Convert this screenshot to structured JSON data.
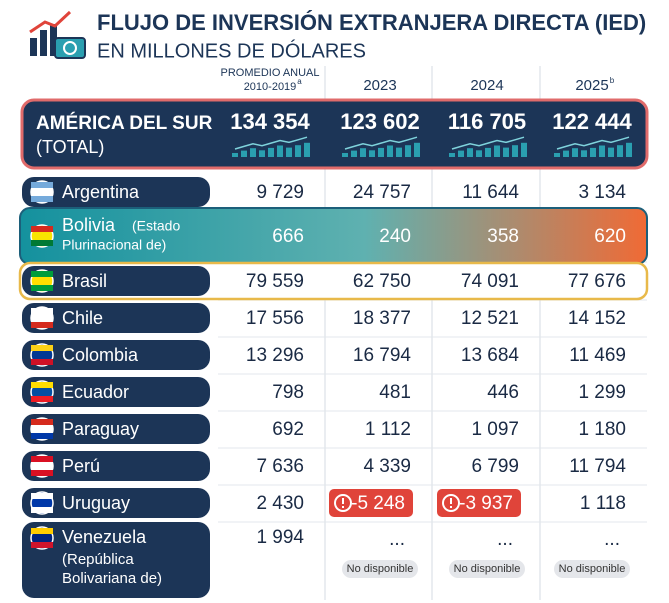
{
  "header": {
    "title": "FLUJO DE INVERSIÓN EXTRANJERA DIRECTA (IED)",
    "subtitle": "EN MILLONES DE DÓLARES"
  },
  "table": {
    "columns": [
      {
        "label_lines": [
          "PROMEDIO ANUAL",
          "2010-2019"
        ],
        "note": "a"
      },
      {
        "label_lines": [
          "2023"
        ]
      },
      {
        "label_lines": [
          "2024"
        ]
      },
      {
        "label_lines": [
          "2025"
        ],
        "note": "b"
      }
    ],
    "total": {
      "name": "AMÉRICA DEL SUR",
      "note": "(TOTAL)",
      "values": [
        "134 354",
        "123 602",
        "116 705",
        "122 444"
      ]
    },
    "rows": [
      {
        "name": "Argentina",
        "values": [
          "9 729",
          "24 757",
          "11 644",
          "3 134"
        ]
      },
      {
        "name": "Bolivia",
        "note_lines": [
          "(Estado",
          "Plurinacional de)"
        ],
        "highlight": "gradient",
        "values": [
          "666",
          "240",
          "358",
          "620"
        ]
      },
      {
        "name": "Brasil",
        "highlight": "outline",
        "values": [
          "79 559",
          "62 750",
          "74 091",
          "77 676"
        ]
      },
      {
        "name": "Chile",
        "values": [
          "17 556",
          "18 377",
          "12 521",
          "14 152"
        ]
      },
      {
        "name": "Colombia",
        "values": [
          "13 296",
          "16 794",
          "13 684",
          "11 469"
        ]
      },
      {
        "name": "Ecuador",
        "values": [
          "798",
          "481",
          "446",
          "1 299"
        ]
      },
      {
        "name": "Paraguay",
        "values": [
          "692",
          "1 112",
          "1 097",
          "1 180"
        ]
      },
      {
        "name": "Perú",
        "values": [
          "7 636",
          "4 339",
          "6 799",
          "11 794"
        ]
      },
      {
        "name": "Uruguay",
        "values": [
          "2 430",
          {
            "text": "-5 248",
            "alert": true
          },
          {
            "text": "-3 937",
            "alert": true
          },
          "1 118"
        ]
      },
      {
        "name": "Venezuela",
        "note_lines": [
          "(República",
          "Bolivariana de)"
        ],
        "values": [
          "1 994",
          {
            "text": "...",
            "badge": "No disponible"
          },
          {
            "text": "...",
            "badge": "No disponible"
          },
          {
            "text": "...",
            "badge": "No disponible"
          }
        ]
      }
    ]
  }
}
